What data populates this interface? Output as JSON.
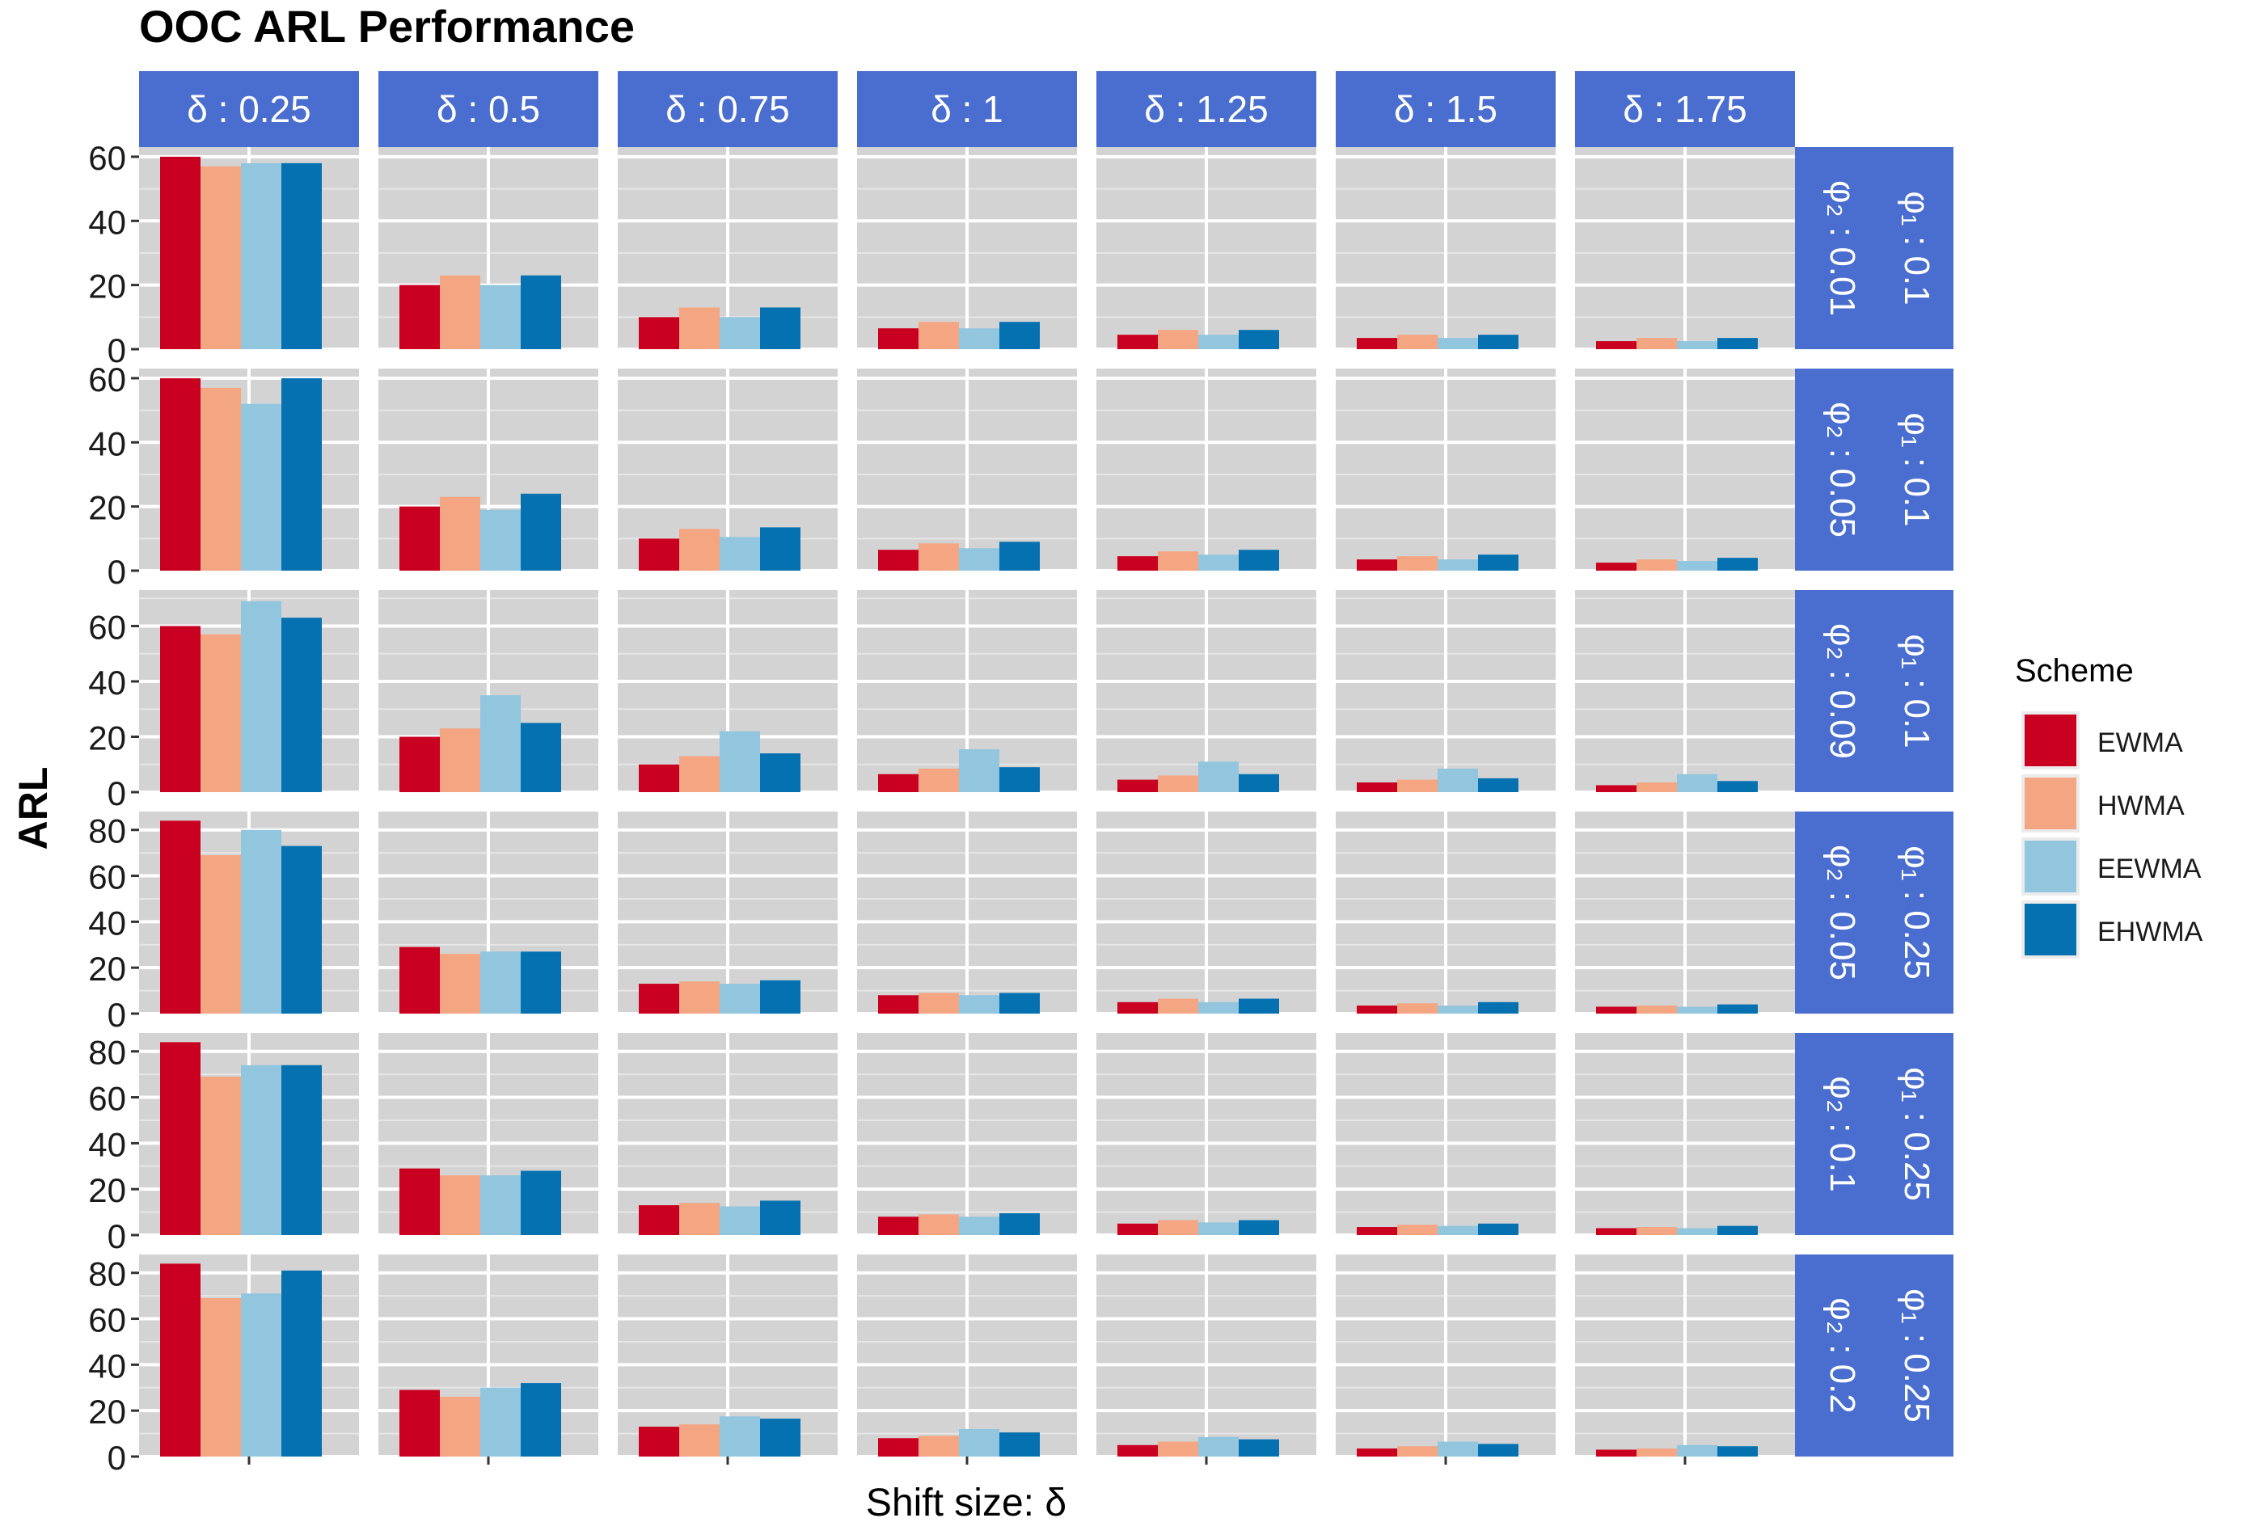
{
  "chart_data": {
    "type": "bar",
    "title": "OOC ARL Performance",
    "xlabel": "Shift size: δ",
    "ylabel": "ARL",
    "legend": {
      "title": "Scheme",
      "position": "right"
    },
    "series": [
      {
        "name": "EWMA",
        "color": "#CA0020"
      },
      {
        "name": "HWMA",
        "color": "#F4A582"
      },
      {
        "name": "EEWMA",
        "color": "#92C5DE"
      },
      {
        "name": "EHWMA",
        "color": "#0571B0"
      }
    ],
    "col_facets": [
      "δ : 0.25",
      "δ : 0.5",
      "δ : 0.75",
      "δ : 1",
      "δ : 1.25",
      "δ : 1.5",
      "δ : 1.75"
    ],
    "rows": [
      {
        "phi1": "φ₁ : 0.1",
        "phi2": "φ₂ : 0.01",
        "ylim": [
          0,
          63
        ],
        "yticks": [
          0,
          20,
          40,
          60
        ],
        "values": [
          [
            60,
            57,
            58,
            58
          ],
          [
            20,
            23,
            20,
            23
          ],
          [
            10,
            13,
            10,
            13
          ],
          [
            6.5,
            8.5,
            6.5,
            8.5
          ],
          [
            4.5,
            6,
            4.5,
            6
          ],
          [
            3.5,
            4.5,
            3.5,
            4.5
          ],
          [
            2.5,
            3.5,
            2.5,
            3.5
          ]
        ]
      },
      {
        "phi1": "φ₁ : 0.1",
        "phi2": "φ₂ : 0.05",
        "ylim": [
          0,
          63
        ],
        "yticks": [
          0,
          20,
          40,
          60
        ],
        "values": [
          [
            60,
            57,
            52,
            60
          ],
          [
            20,
            23,
            19,
            24
          ],
          [
            10,
            13,
            10.5,
            13.5
          ],
          [
            6.5,
            8.5,
            7,
            9
          ],
          [
            4.5,
            6,
            5,
            6.5
          ],
          [
            3.5,
            4.5,
            3.5,
            5
          ],
          [
            2.5,
            3.5,
            3,
            4
          ]
        ]
      },
      {
        "phi1": "φ₁ : 0.1",
        "phi2": "φ₂ : 0.09",
        "ylim": [
          0,
          73
        ],
        "yticks": [
          0,
          20,
          40,
          60
        ],
        "values": [
          [
            60,
            57,
            69,
            63
          ],
          [
            20,
            23,
            35,
            25
          ],
          [
            10,
            13,
            22,
            14
          ],
          [
            6.5,
            8.5,
            15.5,
            9
          ],
          [
            4.5,
            6,
            11,
            6.5
          ],
          [
            3.5,
            4.5,
            8.5,
            5
          ],
          [
            2.5,
            3.5,
            6.5,
            4
          ]
        ]
      },
      {
        "phi1": "φ₁ : 0.25",
        "phi2": "φ₂ : 0.05",
        "ylim": [
          0,
          88
        ],
        "yticks": [
          0,
          20,
          40,
          60,
          80
        ],
        "values": [
          [
            84,
            69,
            80,
            73
          ],
          [
            29,
            26,
            27,
            27
          ],
          [
            13,
            14,
            13,
            14.5
          ],
          [
            8,
            9,
            8,
            9
          ],
          [
            5,
            6.5,
            5,
            6.5
          ],
          [
            3.5,
            4.5,
            3.5,
            5
          ],
          [
            3,
            3.5,
            3,
            4
          ]
        ]
      },
      {
        "phi1": "φ₁ : 0.25",
        "phi2": "φ₂ : 0.1",
        "ylim": [
          0,
          88
        ],
        "yticks": [
          0,
          20,
          40,
          60,
          80
        ],
        "values": [
          [
            84,
            69,
            74,
            74
          ],
          [
            29,
            26,
            26,
            28
          ],
          [
            13,
            14,
            12.5,
            15
          ],
          [
            8,
            9,
            8,
            9.5
          ],
          [
            5,
            6.5,
            5.5,
            6.5
          ],
          [
            3.5,
            4.5,
            4,
            5
          ],
          [
            3,
            3.5,
            3,
            4
          ]
        ]
      },
      {
        "phi1": "φ₁ : 0.25",
        "phi2": "φ₂ : 0.2",
        "ylim": [
          0,
          88
        ],
        "yticks": [
          0,
          20,
          40,
          60,
          80
        ],
        "values": [
          [
            84,
            69,
            71,
            81
          ],
          [
            29,
            26,
            30,
            32
          ],
          [
            13,
            14,
            17.5,
            16.5
          ],
          [
            8,
            9,
            12,
            10.5
          ],
          [
            5,
            6.5,
            8.5,
            7.5
          ],
          [
            3.5,
            4.5,
            6.5,
            5.5
          ],
          [
            3,
            3.5,
            5,
            4.5
          ]
        ]
      }
    ]
  }
}
